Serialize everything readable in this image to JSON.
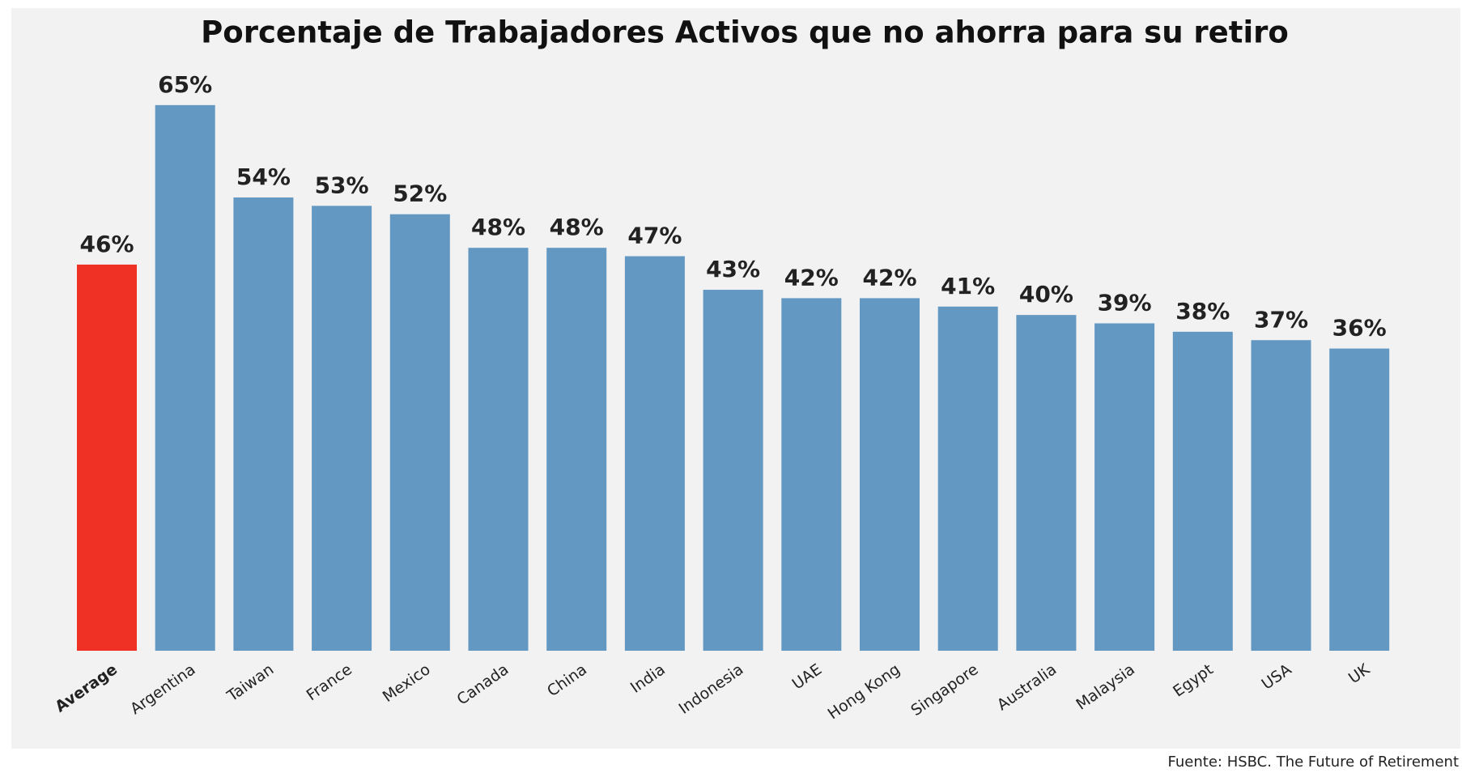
{
  "chart_data": {
    "type": "bar",
    "title": "Porcentaje de Trabajadores Activos que no ahorra para su retiro",
    "source": "Fuente: HSBC. The Future of Retirement",
    "categories": [
      "Average",
      "Argentina",
      "Taiwan",
      "France",
      "Mexico",
      "Canada",
      "China",
      "India",
      "Indonesia",
      "UAE",
      "Hong Kong",
      "Singapore",
      "Australia",
      "Malaysia",
      "Egypt",
      "USA",
      "UK"
    ],
    "values": [
      46,
      65,
      54,
      53,
      52,
      48,
      48,
      47,
      43,
      42,
      42,
      41,
      40,
      39,
      38,
      37,
      36
    ],
    "value_labels": [
      "46%",
      "65%",
      "54%",
      "53%",
      "52%",
      "48%",
      "48%",
      "47%",
      "43%",
      "42%",
      "42%",
      "41%",
      "40%",
      "39%",
      "38%",
      "37%",
      "36%"
    ],
    "colors": [
      "#ee3124",
      "#6398c3",
      "#6398c3",
      "#6398c3",
      "#6398c3",
      "#6398c3",
      "#6398c3",
      "#6398c3",
      "#6398c3",
      "#6398c3",
      "#6398c3",
      "#6398c3",
      "#6398c3",
      "#6398c3",
      "#6398c3",
      "#6398c3",
      "#6398c3"
    ],
    "ylim": [
      0,
      70
    ]
  }
}
